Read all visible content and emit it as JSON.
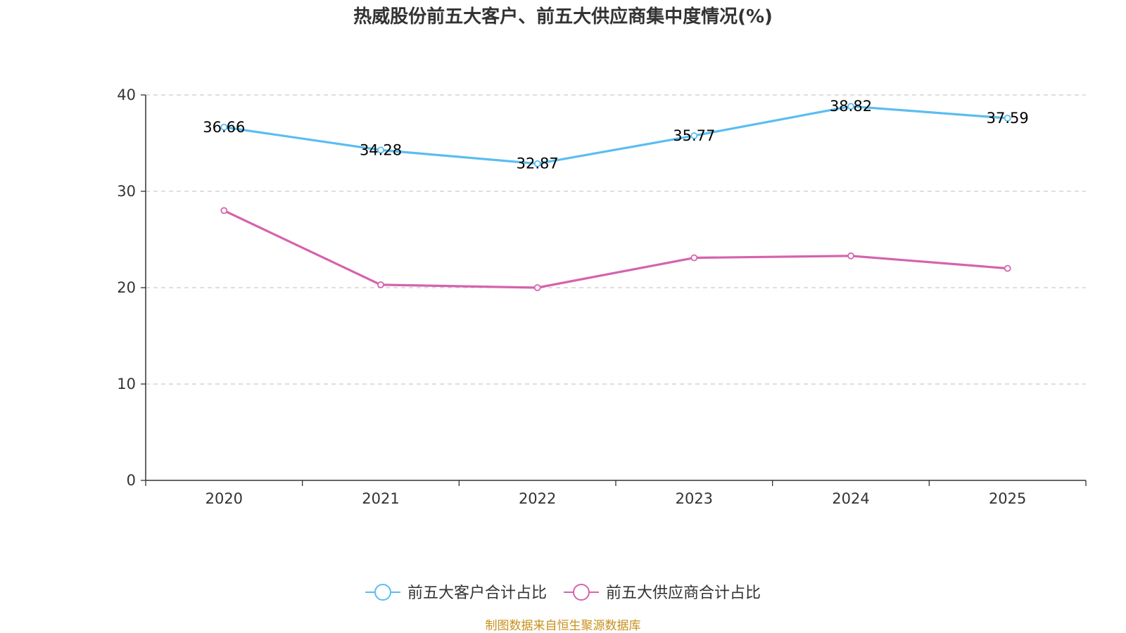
{
  "chart_data": {
    "type": "line",
    "title": "热威股份前五大客户、前五大供应商集中度情况(%)",
    "categories": [
      "2020",
      "2021",
      "2022",
      "2023",
      "2024",
      "2025"
    ],
    "ylim": [
      0,
      40
    ],
    "yticks": [
      0,
      10,
      20,
      30,
      40
    ],
    "grid": true,
    "legend_position": "bottom-center",
    "series": [
      {
        "name": "前五大客户合计占比",
        "color": "#5bbdf0",
        "values": [
          36.66,
          34.28,
          32.87,
          35.77,
          38.82,
          37.59
        ],
        "data_labels": [
          "36.66",
          "34.28",
          "32.87",
          "35.77",
          "38.82",
          "37.59"
        ]
      },
      {
        "name": "前五大供应商合计占比",
        "color": "#d563ad",
        "values": [
          28.0,
          20.3,
          20.0,
          23.1,
          23.3,
          22.0
        ]
      }
    ]
  },
  "source_text": "制图数据来自恒生聚源数据库"
}
